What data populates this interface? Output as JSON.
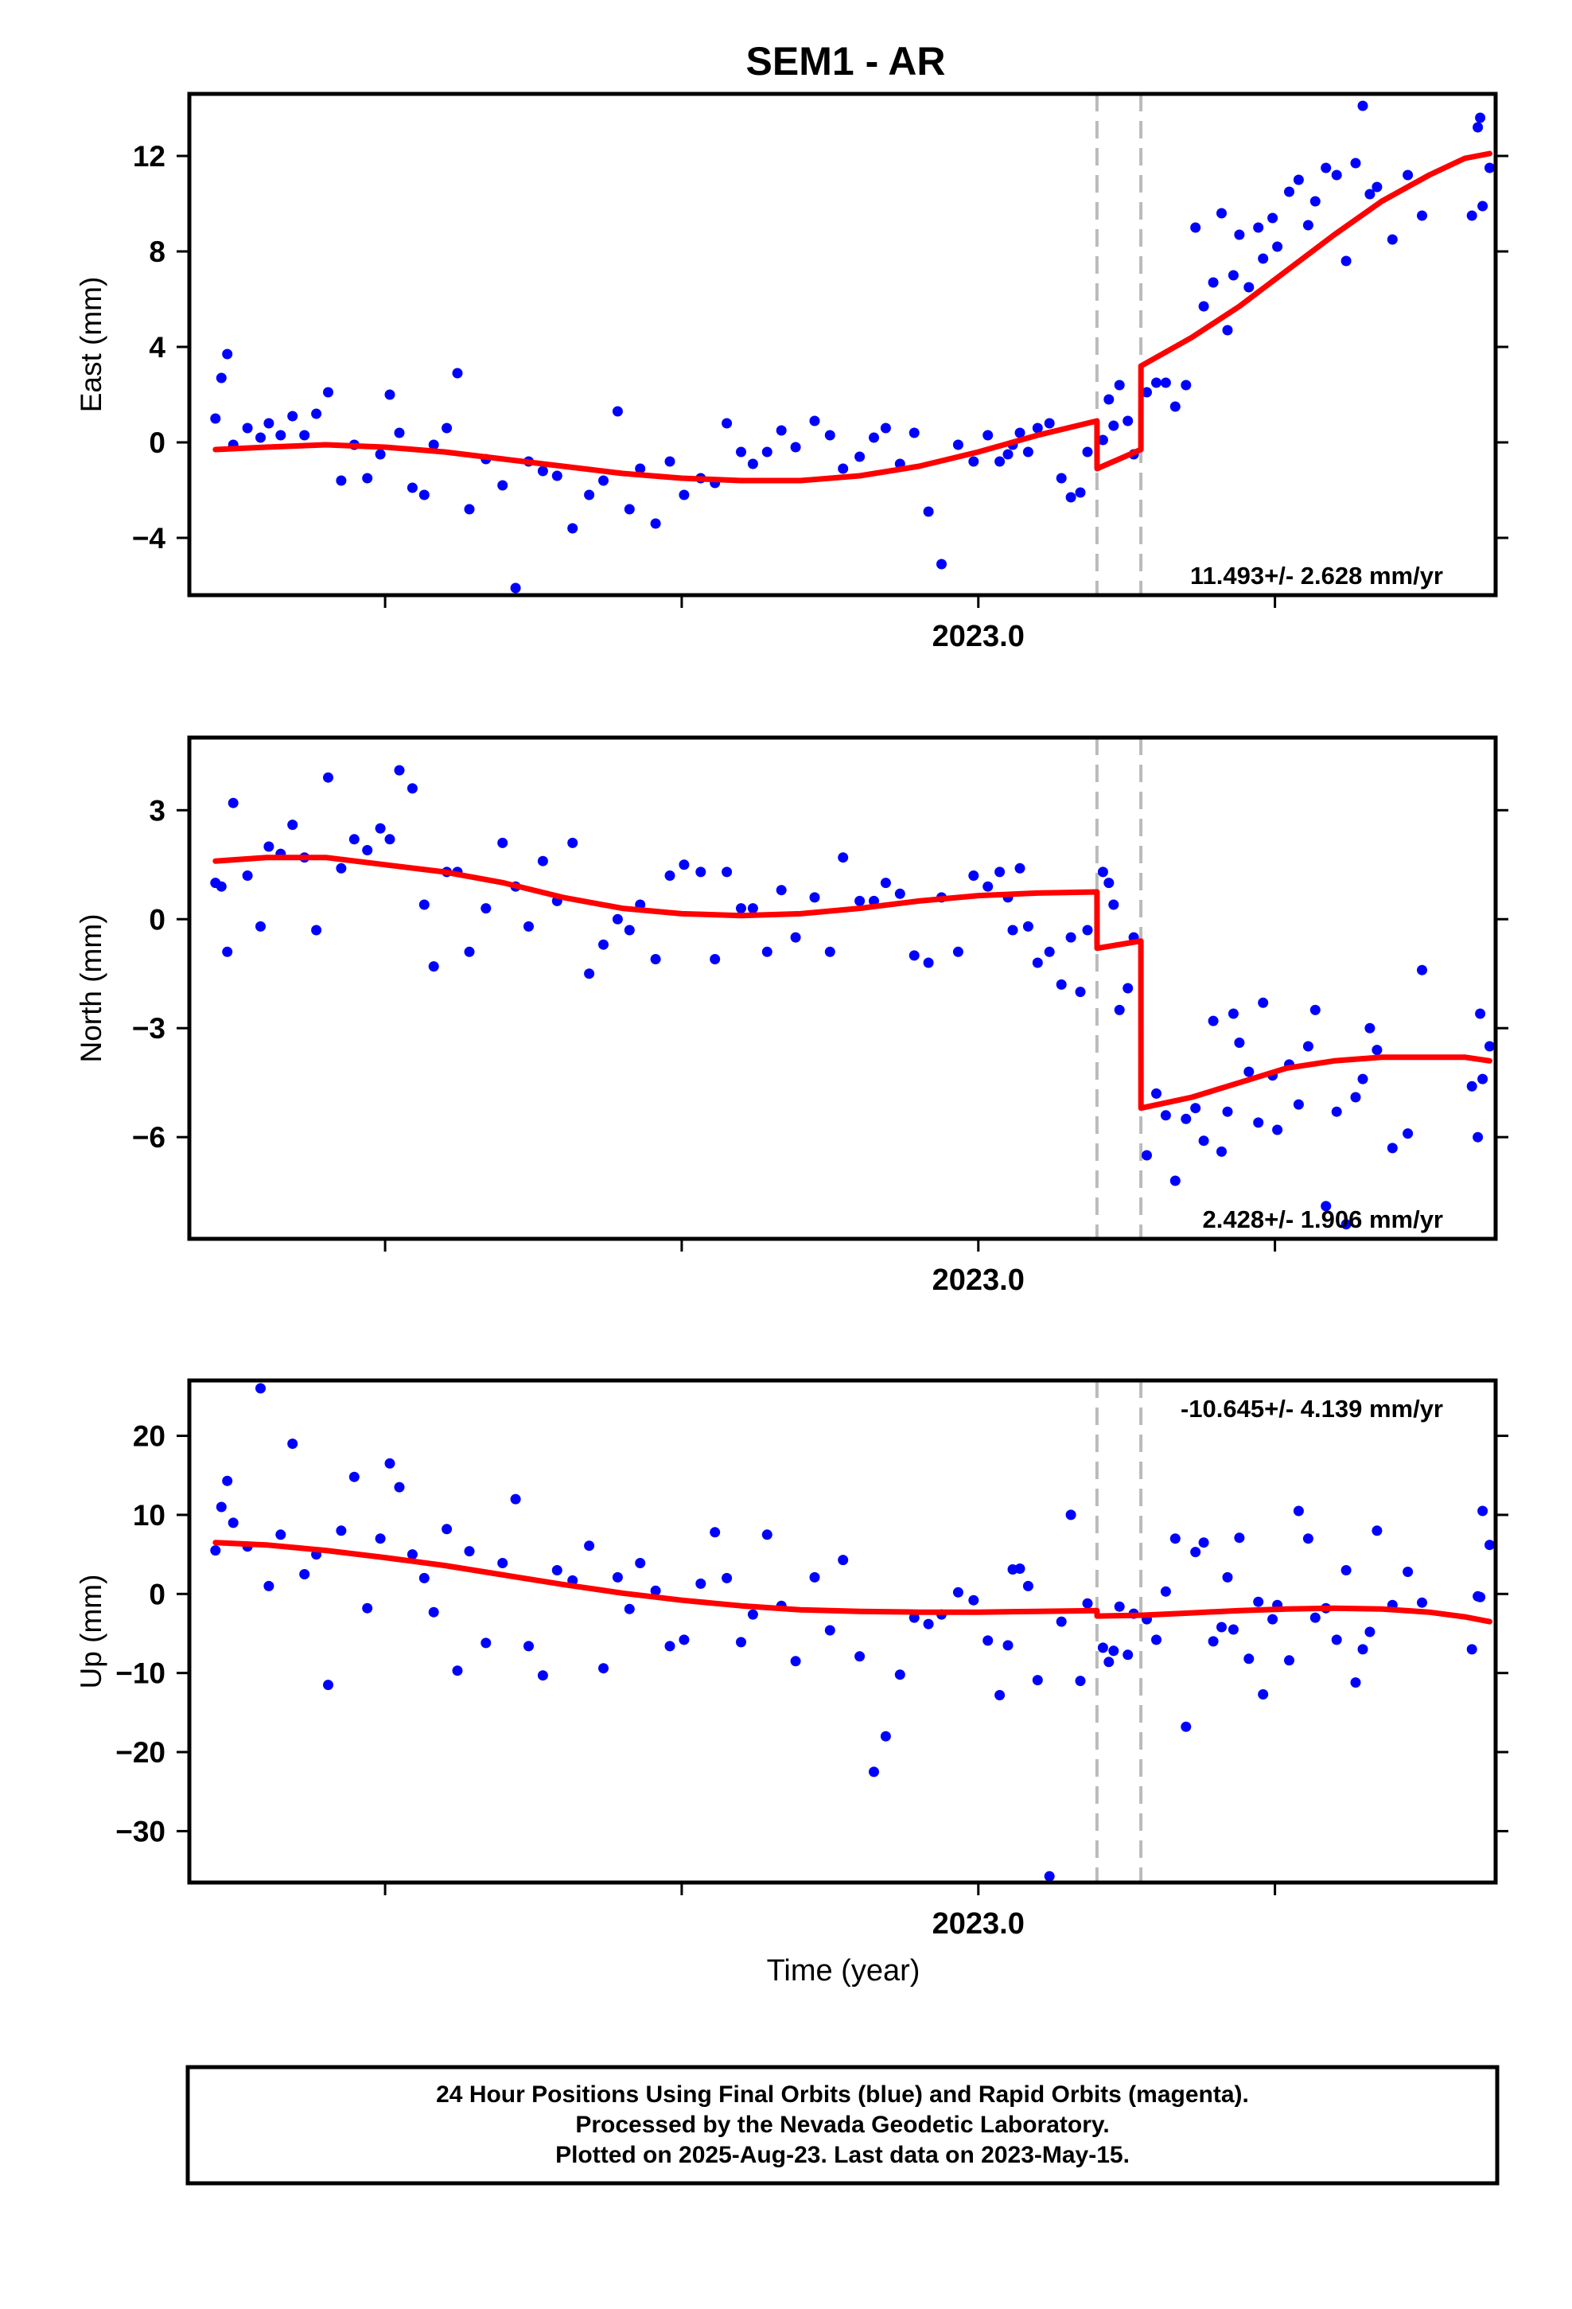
{
  "title": "SEM1 - AR",
  "x_label": "Time (year)",
  "footer": {
    "line1": "24 Hour Positions Using Final Orbits (blue) and Rapid Orbits (magenta).",
    "line2": "Processed by the Nevada Geodetic Laboratory.",
    "line3": "Plotted on 2025-Aug-23. Last data on 2023-May-15."
  },
  "colors": {
    "final_orbits": "#0000ff",
    "model_fit": "#ff0000",
    "event_lines": "#bbbbbb",
    "frame": "#000000"
  },
  "chart_data": [
    {
      "type": "scatter",
      "panel": "east",
      "ylabel": "East (mm)",
      "rate_label": "11.493+/- 2.628 mm/yr",
      "rate_position": "bottom-right",
      "xlim": [
        2022.335,
        2023.436
      ],
      "ylim": [
        -6.4,
        14.6
      ],
      "x_tick_label": "2023.0",
      "x_ticks": [
        2022.5,
        2022.75,
        2023.0,
        2023.25
      ],
      "y_ticks": [
        -4,
        0,
        4,
        8,
        12
      ],
      "event_lines_x": [
        2023.1,
        2023.137
      ],
      "series": [
        {
          "role": "points",
          "x": [
            2022.357,
            2022.362,
            2022.367,
            2022.372,
            2022.384,
            2022.395,
            2022.402,
            2022.412,
            2022.422,
            2022.432,
            2022.442,
            2022.452,
            2022.463,
            2022.474,
            2022.485,
            2022.496,
            2022.504,
            2022.512,
            2022.523,
            2022.533,
            2022.541,
            2022.552,
            2022.561,
            2022.571,
            2022.585,
            2022.599,
            2022.61,
            2022.621,
            2022.633,
            2022.645,
            2022.658,
            2022.672,
            2022.684,
            2022.696,
            2022.706,
            2022.715,
            2022.728,
            2022.74,
            2022.752,
            2022.766,
            2022.778,
            2022.788,
            2022.8,
            2022.81,
            2022.822,
            2022.834,
            2022.846,
            2022.862,
            2022.875,
            2022.886,
            2022.9,
            2022.912,
            2022.922,
            2022.934,
            2022.946,
            2022.958,
            2022.969,
            2022.983,
            2022.996,
            2023.008,
            2023.018,
            2023.025,
            2023.029,
            2023.035,
            2023.042,
            2023.05,
            2023.06,
            2023.07,
            2023.078,
            2023.086,
            2023.092,
            2023.105,
            2023.11,
            2023.114,
            2023.119,
            2023.126,
            2023.131,
            2023.142,
            2023.15,
            2023.158,
            2023.166,
            2023.175,
            2023.183,
            2023.19,
            2023.198,
            2023.205,
            2023.21,
            2023.215,
            2023.22,
            2023.228,
            2023.236,
            2023.24,
            2023.248,
            2023.252,
            2023.262,
            2023.27,
            2023.278,
            2023.284,
            2023.293,
            2023.302,
            2023.31,
            2023.318,
            2023.324,
            2023.33,
            2023.336,
            2023.349,
            2023.362,
            2023.374,
            2023.416,
            2023.421,
            2023.423,
            2023.425,
            2023.431
          ],
          "y": [
            1.0,
            2.7,
            3.7,
            -0.1,
            0.6,
            0.2,
            0.8,
            0.3,
            1.1,
            0.3,
            1.2,
            2.1,
            -1.6,
            -0.1,
            -1.5,
            -0.5,
            2.0,
            0.4,
            -1.9,
            -2.2,
            -0.1,
            0.6,
            2.9,
            -2.8,
            -0.7,
            -1.8,
            -6.1,
            -0.8,
            -1.2,
            -1.4,
            -3.6,
            -2.2,
            -1.6,
            1.3,
            -2.8,
            -1.1,
            -3.4,
            -0.8,
            -2.2,
            -1.5,
            -1.7,
            0.8,
            -0.4,
            -0.9,
            -0.4,
            0.5,
            -0.2,
            0.9,
            0.3,
            -1.1,
            -0.6,
            0.2,
            0.6,
            -0.9,
            0.4,
            -2.9,
            -5.1,
            -0.1,
            -0.8,
            0.3,
            -0.8,
            -0.5,
            -0.1,
            0.4,
            -0.4,
            0.6,
            0.8,
            -1.5,
            -2.3,
            -2.1,
            -0.4,
            0.1,
            1.8,
            0.7,
            2.4,
            0.9,
            -0.5,
            2.1,
            2.5,
            2.5,
            1.5,
            2.4,
            9.0,
            5.7,
            6.7,
            9.6,
            4.7,
            7.0,
            8.7,
            6.5,
            9.0,
            7.7,
            9.4,
            8.2,
            10.5,
            11.0,
            9.1,
            10.1,
            11.5,
            11.2,
            7.6,
            11.7,
            14.1,
            10.4,
            10.7,
            8.5,
            11.2,
            9.5,
            9.5,
            13.2,
            13.6,
            9.9,
            11.5
          ]
        },
        {
          "role": "fit",
          "x": [
            2022.357,
            2022.4,
            2022.45,
            2022.5,
            2022.55,
            2022.6,
            2022.65,
            2022.7,
            2022.75,
            2022.8,
            2022.85,
            2022.9,
            2022.95,
            2023.0,
            2023.05,
            2023.1,
            2023.1001,
            2023.137,
            2023.1371,
            2023.18,
            2023.22,
            2023.26,
            2023.3,
            2023.34,
            2023.38,
            2023.41,
            2023.431
          ],
          "y": [
            -0.3,
            -0.2,
            -0.1,
            -0.2,
            -0.4,
            -0.7,
            -1.0,
            -1.3,
            -1.5,
            -1.6,
            -1.6,
            -1.4,
            -1.0,
            -0.4,
            0.3,
            0.9,
            -1.1,
            -0.3,
            3.2,
            4.4,
            5.7,
            7.2,
            8.7,
            10.1,
            11.2,
            11.9,
            12.1
          ]
        }
      ]
    },
    {
      "type": "scatter",
      "panel": "north",
      "ylabel": "North (mm)",
      "rate_label": "2.428+/- 1.906 mm/yr",
      "rate_position": "bottom-right",
      "xlim": [
        2022.335,
        2023.436
      ],
      "ylim": [
        -8.8,
        5.0
      ],
      "x_tick_label": "2023.0",
      "x_ticks": [
        2022.5,
        2022.75,
        2023.0,
        2023.25
      ],
      "y_ticks": [
        -6,
        -3,
        0,
        3
      ],
      "event_lines_x": [
        2023.1,
        2023.137
      ],
      "series": [
        {
          "role": "points",
          "x": [
            2022.357,
            2022.362,
            2022.367,
            2022.372,
            2022.384,
            2022.395,
            2022.402,
            2022.412,
            2022.422,
            2022.432,
            2022.442,
            2022.452,
            2022.463,
            2022.474,
            2022.485,
            2022.496,
            2022.504,
            2022.512,
            2022.523,
            2022.533,
            2022.541,
            2022.552,
            2022.561,
            2022.571,
            2022.585,
            2022.599,
            2022.61,
            2022.621,
            2022.633,
            2022.645,
            2022.658,
            2022.672,
            2022.684,
            2022.696,
            2022.706,
            2022.715,
            2022.728,
            2022.74,
            2022.752,
            2022.766,
            2022.778,
            2022.788,
            2022.8,
            2022.81,
            2022.822,
            2022.834,
            2022.846,
            2022.862,
            2022.875,
            2022.886,
            2022.9,
            2022.912,
            2022.922,
            2022.934,
            2022.946,
            2022.958,
            2022.969,
            2022.983,
            2022.996,
            2023.008,
            2023.018,
            2023.025,
            2023.029,
            2023.035,
            2023.042,
            2023.05,
            2023.06,
            2023.07,
            2023.078,
            2023.086,
            2023.092,
            2023.105,
            2023.11,
            2023.114,
            2023.119,
            2023.126,
            2023.131,
            2023.142,
            2023.15,
            2023.158,
            2023.166,
            2023.175,
            2023.183,
            2023.19,
            2023.198,
            2023.205,
            2023.21,
            2023.215,
            2023.22,
            2023.228,
            2023.236,
            2023.24,
            2023.248,
            2023.252,
            2023.262,
            2023.27,
            2023.278,
            2023.284,
            2023.293,
            2023.302,
            2023.31,
            2023.318,
            2023.324,
            2023.33,
            2023.336,
            2023.349,
            2023.362,
            2023.374,
            2023.416,
            2023.421,
            2023.423,
            2023.425,
            2023.431
          ],
          "y": [
            1.0,
            0.9,
            -0.9,
            3.2,
            1.2,
            -0.2,
            2.0,
            1.8,
            2.6,
            1.7,
            -0.3,
            3.9,
            1.4,
            2.2,
            1.9,
            2.5,
            2.2,
            4.1,
            3.6,
            0.4,
            -1.3,
            1.3,
            1.3,
            -0.9,
            0.3,
            2.1,
            0.9,
            -0.2,
            1.6,
            0.5,
            2.1,
            -1.5,
            -0.7,
            0.0,
            -0.3,
            0.4,
            -1.1,
            1.2,
            1.5,
            1.3,
            -1.1,
            1.3,
            0.3,
            0.3,
            -0.9,
            0.8,
            -0.5,
            0.6,
            -0.9,
            1.7,
            0.5,
            0.5,
            1.0,
            0.7,
            -1.0,
            -1.2,
            0.6,
            -0.9,
            1.2,
            0.9,
            1.3,
            0.6,
            -0.3,
            1.4,
            -0.2,
            -1.2,
            -0.9,
            -1.8,
            -0.5,
            -2.0,
            -0.3,
            1.3,
            1.0,
            0.4,
            -2.5,
            -1.9,
            -0.5,
            -6.5,
            -4.8,
            -5.4,
            -7.2,
            -5.5,
            -5.2,
            -6.1,
            -2.8,
            -6.4,
            -5.3,
            -2.6,
            -3.4,
            -4.2,
            -5.6,
            -2.3,
            -4.3,
            -5.8,
            -4.0,
            -5.1,
            -3.5,
            -2.5,
            -7.9,
            -5.3,
            -8.4,
            -4.9,
            -4.4,
            -3.0,
            -3.6,
            -6.3,
            -5.9,
            -1.4,
            -4.6,
            -6.0,
            -2.6,
            -4.4,
            -3.5
          ]
        },
        {
          "role": "fit",
          "x": [
            2022.357,
            2022.4,
            2022.45,
            2022.5,
            2022.55,
            2022.6,
            2022.65,
            2022.7,
            2022.75,
            2022.8,
            2022.85,
            2022.9,
            2022.95,
            2023.0,
            2023.05,
            2023.1,
            2023.1001,
            2023.137,
            2023.1371,
            2023.18,
            2023.22,
            2023.26,
            2023.3,
            2023.34,
            2023.38,
            2023.41,
            2023.431
          ],
          "y": [
            1.6,
            1.7,
            1.7,
            1.5,
            1.3,
            1.0,
            0.6,
            0.3,
            0.15,
            0.1,
            0.15,
            0.3,
            0.5,
            0.65,
            0.72,
            0.75,
            -0.8,
            -0.6,
            -5.2,
            -4.9,
            -4.5,
            -4.1,
            -3.9,
            -3.8,
            -3.8,
            -3.8,
            -3.9
          ]
        }
      ]
    },
    {
      "type": "scatter",
      "panel": "up",
      "ylabel": "Up (mm)",
      "rate_label": "-10.645+/- 4.139 mm/yr",
      "rate_position": "top-right",
      "xlim": [
        2022.335,
        2023.436
      ],
      "ylim": [
        -36.5,
        27.0
      ],
      "x_tick_label": "2023.0",
      "x_ticks": [
        2022.5,
        2022.75,
        2023.0,
        2023.25
      ],
      "y_ticks": [
        -30,
        -20,
        -10,
        0,
        10,
        20
      ],
      "event_lines_x": [
        2023.1,
        2023.137
      ],
      "series": [
        {
          "role": "points",
          "x": [
            2022.357,
            2022.362,
            2022.367,
            2022.372,
            2022.384,
            2022.395,
            2022.402,
            2022.412,
            2022.422,
            2022.432,
            2022.442,
            2022.452,
            2022.463,
            2022.474,
            2022.485,
            2022.496,
            2022.504,
            2022.512,
            2022.523,
            2022.533,
            2022.541,
            2022.552,
            2022.561,
            2022.571,
            2022.585,
            2022.599,
            2022.61,
            2022.621,
            2022.633,
            2022.645,
            2022.658,
            2022.672,
            2022.684,
            2022.696,
            2022.706,
            2022.715,
            2022.728,
            2022.74,
            2022.752,
            2022.766,
            2022.778,
            2022.788,
            2022.8,
            2022.81,
            2022.822,
            2022.834,
            2022.846,
            2022.862,
            2022.875,
            2022.886,
            2022.9,
            2022.912,
            2022.922,
            2022.934,
            2022.946,
            2022.958,
            2022.969,
            2022.983,
            2022.996,
            2023.008,
            2023.018,
            2023.025,
            2023.029,
            2023.035,
            2023.042,
            2023.05,
            2023.06,
            2023.07,
            2023.078,
            2023.086,
            2023.092,
            2023.105,
            2023.11,
            2023.114,
            2023.119,
            2023.126,
            2023.131,
            2023.142,
            2023.15,
            2023.158,
            2023.166,
            2023.175,
            2023.183,
            2023.19,
            2023.198,
            2023.205,
            2023.21,
            2023.215,
            2023.22,
            2023.228,
            2023.236,
            2023.24,
            2023.248,
            2023.252,
            2023.262,
            2023.27,
            2023.278,
            2023.284,
            2023.293,
            2023.302,
            2023.31,
            2023.318,
            2023.324,
            2023.33,
            2023.336,
            2023.349,
            2023.362,
            2023.374,
            2023.416,
            2023.421,
            2023.423,
            2023.425,
            2023.431
          ],
          "y": [
            5.5,
            11.0,
            14.3,
            9.0,
            6.0,
            26.0,
            1.0,
            7.5,
            19.0,
            2.5,
            5.0,
            -11.5,
            8.0,
            14.8,
            -1.8,
            7.0,
            16.5,
            13.5,
            5.0,
            2.0,
            -2.3,
            8.2,
            -9.7,
            5.4,
            -6.2,
            3.9,
            12.0,
            -6.6,
            -10.3,
            3.0,
            1.7,
            6.1,
            -9.4,
            2.1,
            -1.9,
            3.9,
            0.4,
            -6.6,
            -5.8,
            1.3,
            7.8,
            2.0,
            -6.1,
            -2.6,
            7.5,
            -1.5,
            -8.5,
            2.1,
            -4.6,
            4.3,
            -7.9,
            -22.5,
            -18.0,
            -10.2,
            -3.0,
            -3.8,
            -2.6,
            0.2,
            -0.8,
            -5.9,
            -12.8,
            -6.5,
            3.1,
            3.2,
            1.0,
            -10.9,
            -35.7,
            -3.5,
            10.0,
            -11.0,
            -1.2,
            -6.8,
            -8.6,
            -7.2,
            -1.6,
            -7.7,
            -2.5,
            -3.2,
            -5.8,
            0.3,
            7.0,
            -16.8,
            5.3,
            6.5,
            -6.0,
            -4.2,
            2.1,
            -4.5,
            7.1,
            -8.2,
            -1.0,
            -12.7,
            -3.2,
            -1.4,
            -8.4,
            10.5,
            7.0,
            -3.0,
            -1.8,
            -5.8,
            3.0,
            -11.2,
            -7.0,
            -4.8,
            8.0,
            -1.4,
            2.8,
            -1.1,
            -7.0,
            -0.3,
            -0.4,
            10.5,
            6.2
          ]
        },
        {
          "role": "fit",
          "x": [
            2022.357,
            2022.4,
            2022.45,
            2022.5,
            2022.55,
            2022.6,
            2022.65,
            2022.7,
            2022.75,
            2022.8,
            2022.85,
            2022.9,
            2022.95,
            2023.0,
            2023.05,
            2023.1,
            2023.1001,
            2023.137,
            2023.1371,
            2023.18,
            2023.22,
            2023.26,
            2023.3,
            2023.34,
            2023.38,
            2023.41,
            2023.431
          ],
          "y": [
            6.5,
            6.2,
            5.5,
            4.6,
            3.6,
            2.4,
            1.2,
            0.1,
            -0.8,
            -1.5,
            -2.0,
            -2.2,
            -2.3,
            -2.3,
            -2.2,
            -2.1,
            -2.8,
            -2.7,
            -2.7,
            -2.4,
            -2.1,
            -1.9,
            -1.8,
            -1.9,
            -2.3,
            -2.9,
            -3.5
          ]
        }
      ]
    }
  ]
}
